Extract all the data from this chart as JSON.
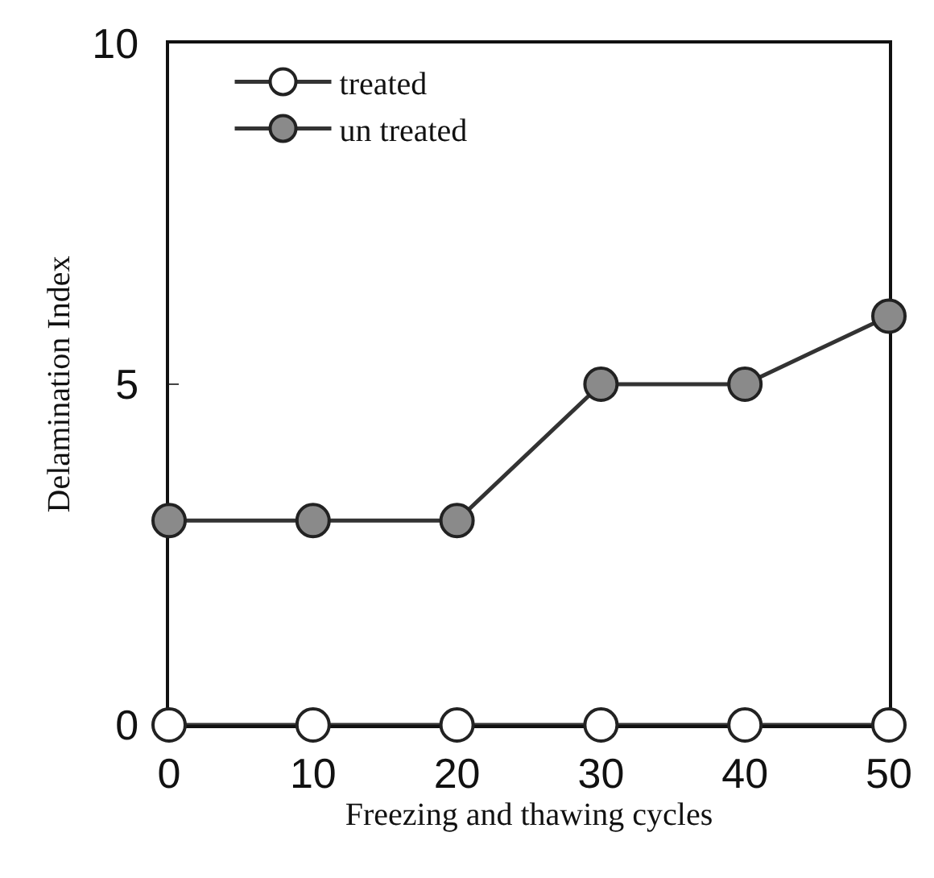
{
  "chart_data": {
    "type": "line",
    "xlabel": "Freezing and thawing cycles",
    "ylabel": "Delamination Index",
    "x": [
      0,
      10,
      20,
      30,
      40,
      50
    ],
    "series": [
      {
        "name": "treated",
        "color": "#ffffff",
        "values": [
          0,
          0,
          0,
          0,
          0,
          0
        ]
      },
      {
        "name": "un treated",
        "color": "#8a8a8a",
        "values": [
          3,
          3,
          3,
          5,
          5,
          6
        ]
      }
    ],
    "xlim": [
      0,
      50
    ],
    "xticks": [
      0,
      10,
      20,
      30,
      40,
      50
    ],
    "ylim": [
      0,
      10
    ],
    "yticks": [
      0,
      5,
      10
    ],
    "legend": "top left",
    "marker": "circle",
    "line_style": "solid"
  }
}
